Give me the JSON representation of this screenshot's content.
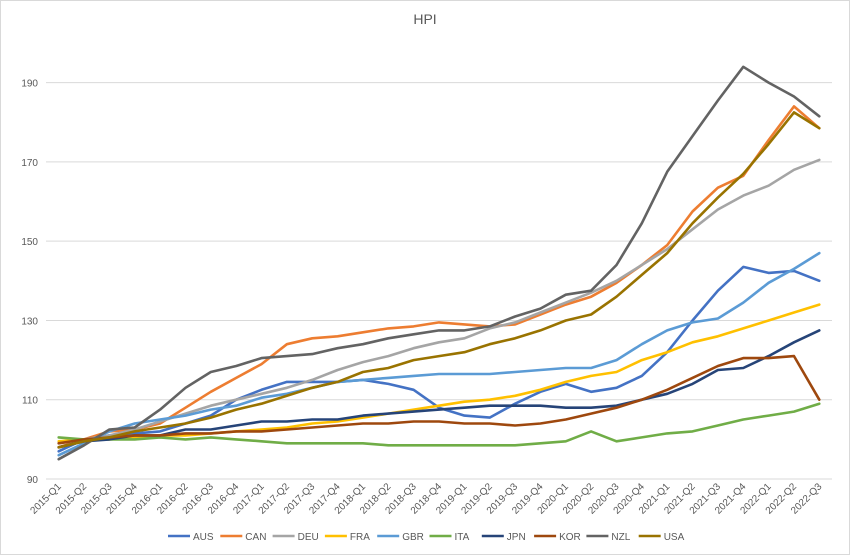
{
  "chart_data": {
    "type": "line",
    "title": "HPI",
    "xlabel": "",
    "ylabel": "",
    "ylim": [
      90,
      200
    ],
    "yticks": [
      90,
      110,
      130,
      150,
      170,
      190
    ],
    "grid": "horizontal",
    "legend_position": "bottom",
    "categories": [
      "2015-Q1",
      "2015-Q2",
      "2015-Q3",
      "2015-Q4",
      "2016-Q1",
      "2016-Q2",
      "2016-Q3",
      "2016-Q4",
      "2017-Q1",
      "2017-Q2",
      "2017-Q3",
      "2017-Q4",
      "2018-Q1",
      "2018-Q2",
      "2018-Q3",
      "2018-Q4",
      "2019-Q1",
      "2019-Q2",
      "2019-Q3",
      "2019-Q4",
      "2020-Q1",
      "2020-Q2",
      "2020-Q3",
      "2020-Q4",
      "2021-Q1",
      "2021-Q2",
      "2021-Q3",
      "2021-Q4",
      "2022-Q1",
      "2022-Q2",
      "2022-Q3"
    ],
    "series": [
      {
        "name": "AUS",
        "color": "#4472C4",
        "values": [
          97,
          100,
          101,
          101.5,
          102,
          104,
          106,
          110,
          112.5,
          114.5,
          114.5,
          114.5,
          115,
          114,
          112.5,
          108,
          106,
          105.5,
          109,
          112,
          114,
          112,
          113,
          116,
          122,
          130,
          137.5,
          143.5,
          142,
          142.5,
          140
        ]
      },
      {
        "name": "CAN",
        "color": "#ED7D31",
        "values": [
          98,
          100,
          102,
          102.5,
          104,
          108,
          112,
          115.5,
          119,
          124,
          125.5,
          126,
          127,
          128,
          128.5,
          129.5,
          129,
          128.5,
          129,
          131.5,
          134,
          136,
          139.5,
          144,
          149,
          157.5,
          163.5,
          166.5,
          175.5,
          184,
          178.5
        ]
      },
      {
        "name": "DEU",
        "color": "#A5A5A5",
        "values": [
          99,
          100,
          101,
          102.5,
          104.5,
          106.5,
          108.5,
          110,
          111.5,
          113,
          115,
          117.5,
          119.5,
          121,
          123,
          124.5,
          125.5,
          128,
          129.5,
          132,
          134.5,
          137,
          140,
          144,
          148,
          153,
          158,
          161.5,
          164,
          168,
          170.5
        ]
      },
      {
        "name": "FRA",
        "color": "#FFC000",
        "values": [
          99.5,
          100,
          100,
          100.5,
          101,
          101,
          101.5,
          102,
          102.5,
          103,
          104,
          104.5,
          105.5,
          106.5,
          107.5,
          108.5,
          109.5,
          110,
          111,
          112.5,
          114.5,
          116,
          117,
          120,
          122,
          124.5,
          126,
          128,
          130,
          132,
          134
        ]
      },
      {
        "name": "GBR",
        "color": "#5B9BD5",
        "values": [
          96,
          99,
          102,
          104,
          105,
          106,
          107.5,
          108.5,
          110.5,
          111.5,
          113,
          114.5,
          115,
          115.5,
          116,
          116.5,
          116.5,
          116.5,
          117,
          117.5,
          118,
          118,
          120,
          124,
          127.5,
          129.5,
          130.5,
          134.5,
          139.5,
          143,
          147
        ]
      },
      {
        "name": "ITA",
        "color": "#70AD47",
        "values": [
          100.5,
          100,
          100,
          100,
          100.5,
          100,
          100.5,
          100,
          99.5,
          99,
          99,
          99,
          99,
          98.5,
          98.5,
          98.5,
          98.5,
          98.5,
          98.5,
          99,
          99.5,
          102,
          99.5,
          100.5,
          101.5,
          102,
          103.5,
          105,
          106,
          107,
          109
        ]
      },
      {
        "name": "JPN",
        "color": "#264478",
        "values": [
          98,
          99.5,
          100,
          101,
          101,
          102.5,
          102.5,
          103.5,
          104.5,
          104.5,
          105,
          105,
          106,
          106.5,
          107,
          107.5,
          108,
          108.5,
          108.5,
          108.5,
          108,
          108,
          108.5,
          110,
          111.5,
          114,
          117.5,
          118,
          121,
          124.5,
          127.5
        ]
      },
      {
        "name": "KOR",
        "color": "#9E480E",
        "values": [
          99,
          100,
          100.5,
          101,
          101,
          101.5,
          101.5,
          102,
          102,
          102.5,
          103,
          103.5,
          104,
          104,
          104.5,
          104.5,
          104,
          104,
          103.5,
          104,
          105,
          106.5,
          108,
          110,
          112.5,
          115.5,
          118.5,
          120.5,
          120.5,
          121,
          110
        ]
      },
      {
        "name": "NZL",
        "color": "#636363",
        "values": [
          95,
          98.5,
          102.5,
          103,
          107.5,
          113,
          117,
          118.5,
          120.5,
          121,
          121.5,
          123,
          124,
          125.5,
          126.5,
          127.5,
          127.5,
          128.5,
          131,
          133,
          136.5,
          137.5,
          144,
          154.5,
          167.5,
          176.5,
          185.5,
          194,
          190,
          186.5,
          181.5
        ]
      },
      {
        "name": "USA",
        "color": "#997300",
        "values": [
          98,
          99.5,
          100.5,
          102,
          103,
          104,
          105.5,
          107.5,
          109,
          111,
          113,
          114.5,
          117,
          118,
          120,
          121,
          122,
          124,
          125.5,
          127.5,
          130,
          131.5,
          136,
          141.5,
          147,
          154.5,
          161,
          167,
          174.5,
          182.5,
          178.5
        ]
      }
    ]
  }
}
